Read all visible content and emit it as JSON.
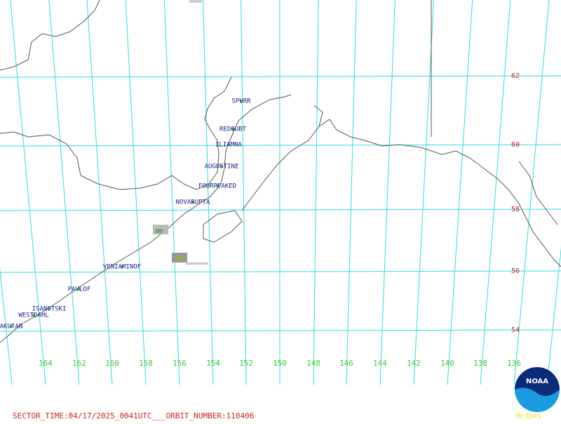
{
  "lat_labels": [
    62,
    60,
    58,
    56,
    54
  ],
  "lon_labels": [
    164,
    162,
    160,
    158,
    156,
    154,
    152,
    150,
    148,
    146,
    144,
    142,
    140,
    138,
    136
  ],
  "volcanoes": [
    {
      "name": "SPURR"
    },
    {
      "name": "REDOUBT"
    },
    {
      "name": "ILIAMNA"
    },
    {
      "name": "AUGUSTINE"
    },
    {
      "name": "FOURPEAKED"
    },
    {
      "name": "NOVARUPTA"
    },
    {
      "name": "VENIAMINOF"
    },
    {
      "name": "PAVLOF"
    },
    {
      "name": "ISANOTSKI"
    },
    {
      "name": "WESTDAHL"
    },
    {
      "name": "AKUTAN"
    }
  ],
  "footer": "SECTOR_TIME:04/17/2025_0041UTC___ORBIT_NUMBER:110406",
  "logo": {
    "text": "NOAA",
    "caption": "McIDAS"
  }
}
